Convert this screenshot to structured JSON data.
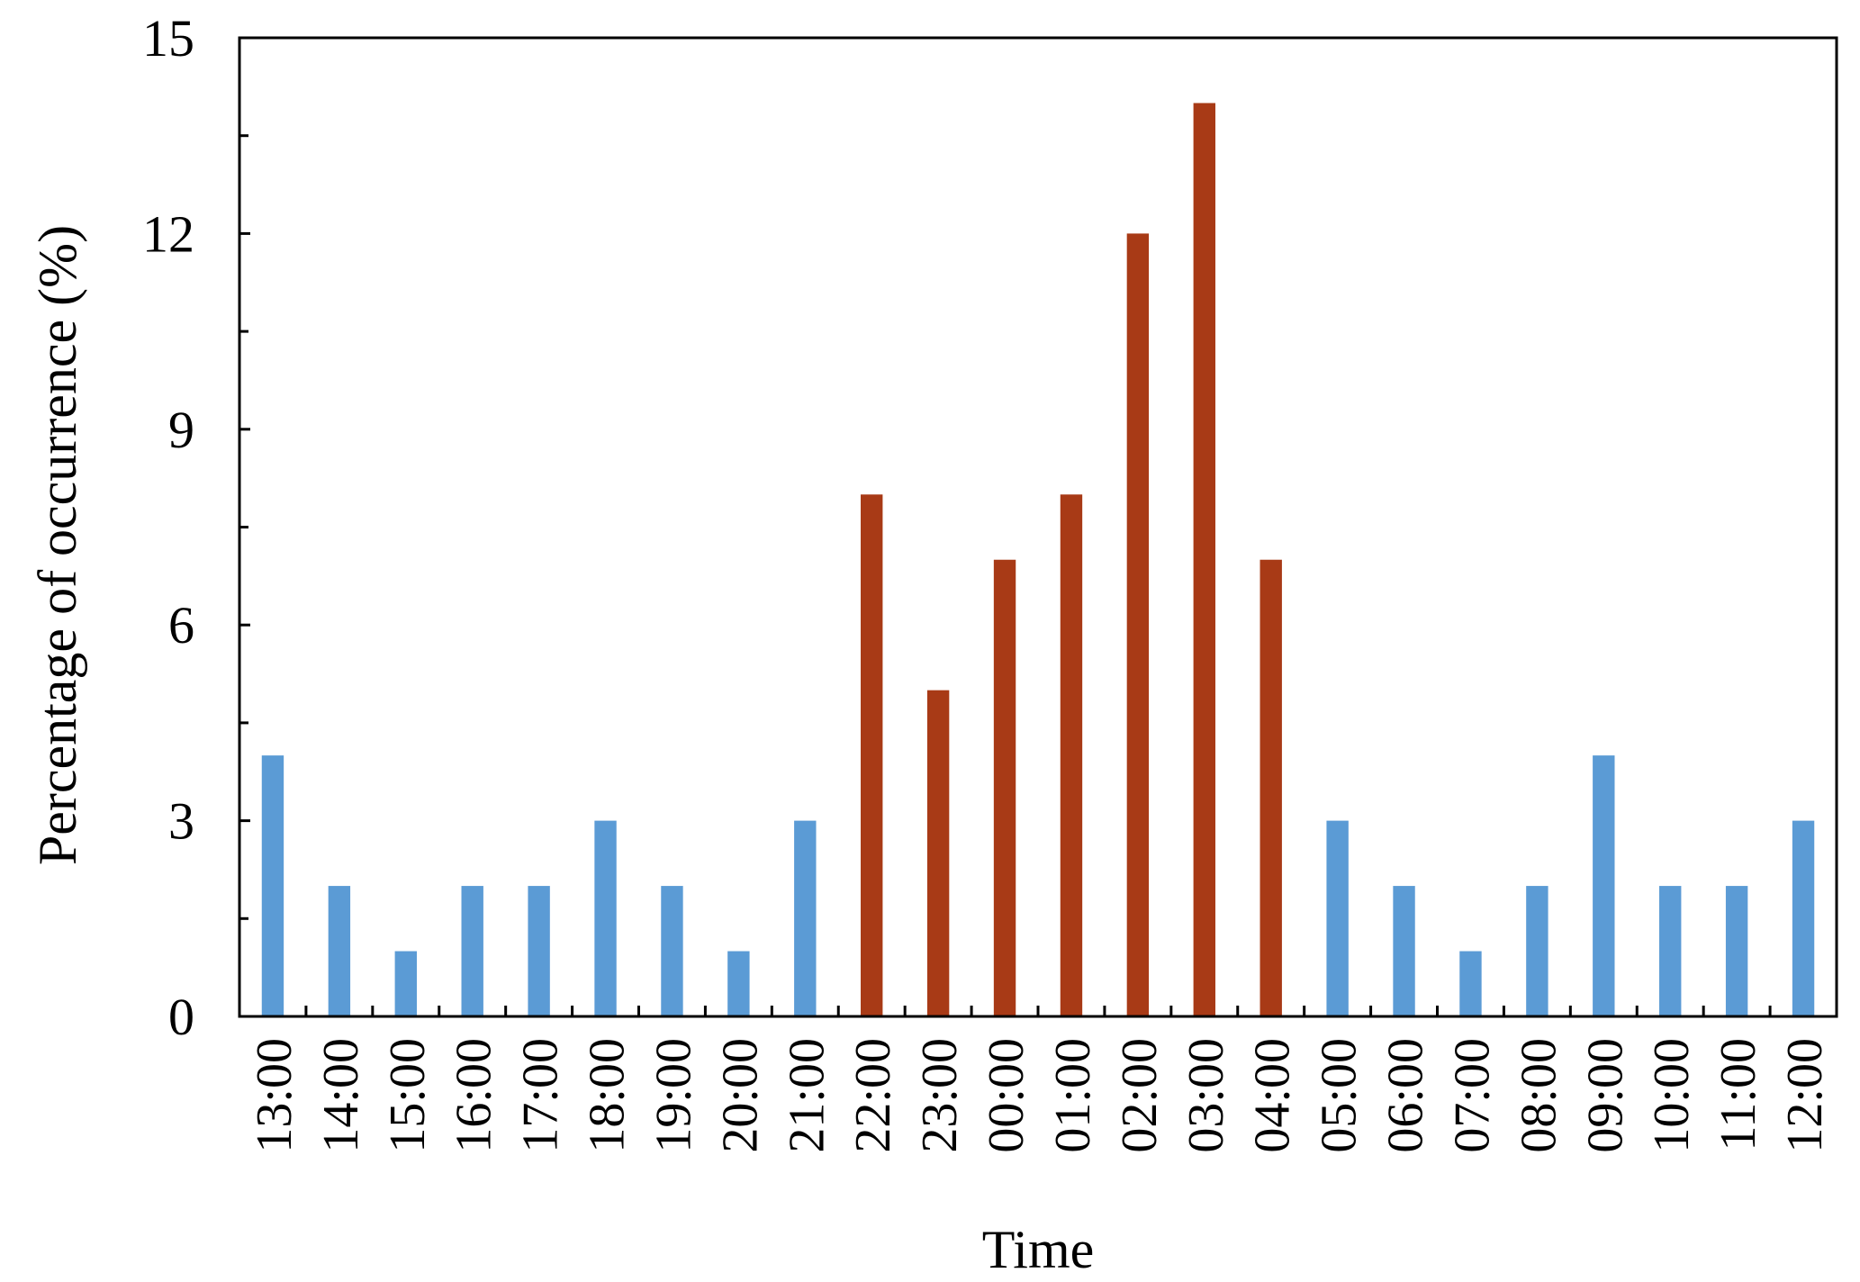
{
  "chart_data": {
    "type": "bar",
    "xlabel": "Time",
    "ylabel": "Percentage of occurrence (%)",
    "ylim": [
      0,
      15
    ],
    "yticks": [
      0,
      3,
      6,
      9,
      12,
      15
    ],
    "grid": false,
    "legend": "none",
    "categories": [
      "13:00",
      "14:00",
      "15:00",
      "16:00",
      "17:00",
      "18:00",
      "19:00",
      "20:00",
      "21:00",
      "22:00",
      "23:00",
      "00:00",
      "01:00",
      "02:00",
      "03:00",
      "04:00",
      "05:00",
      "06:00",
      "07:00",
      "08:00",
      "09:00",
      "10:00",
      "11:00",
      "12:00"
    ],
    "values": [
      4,
      2,
      1,
      2,
      2,
      3,
      2,
      1,
      3,
      8,
      5,
      7,
      8,
      12,
      14,
      7,
      3,
      2,
      1,
      2,
      4,
      2,
      2,
      3
    ],
    "highlight_range": [
      "22:00",
      "04:00"
    ],
    "colors": {
      "normal": "#5b9bd5",
      "highlight": "#a83a16"
    }
  }
}
